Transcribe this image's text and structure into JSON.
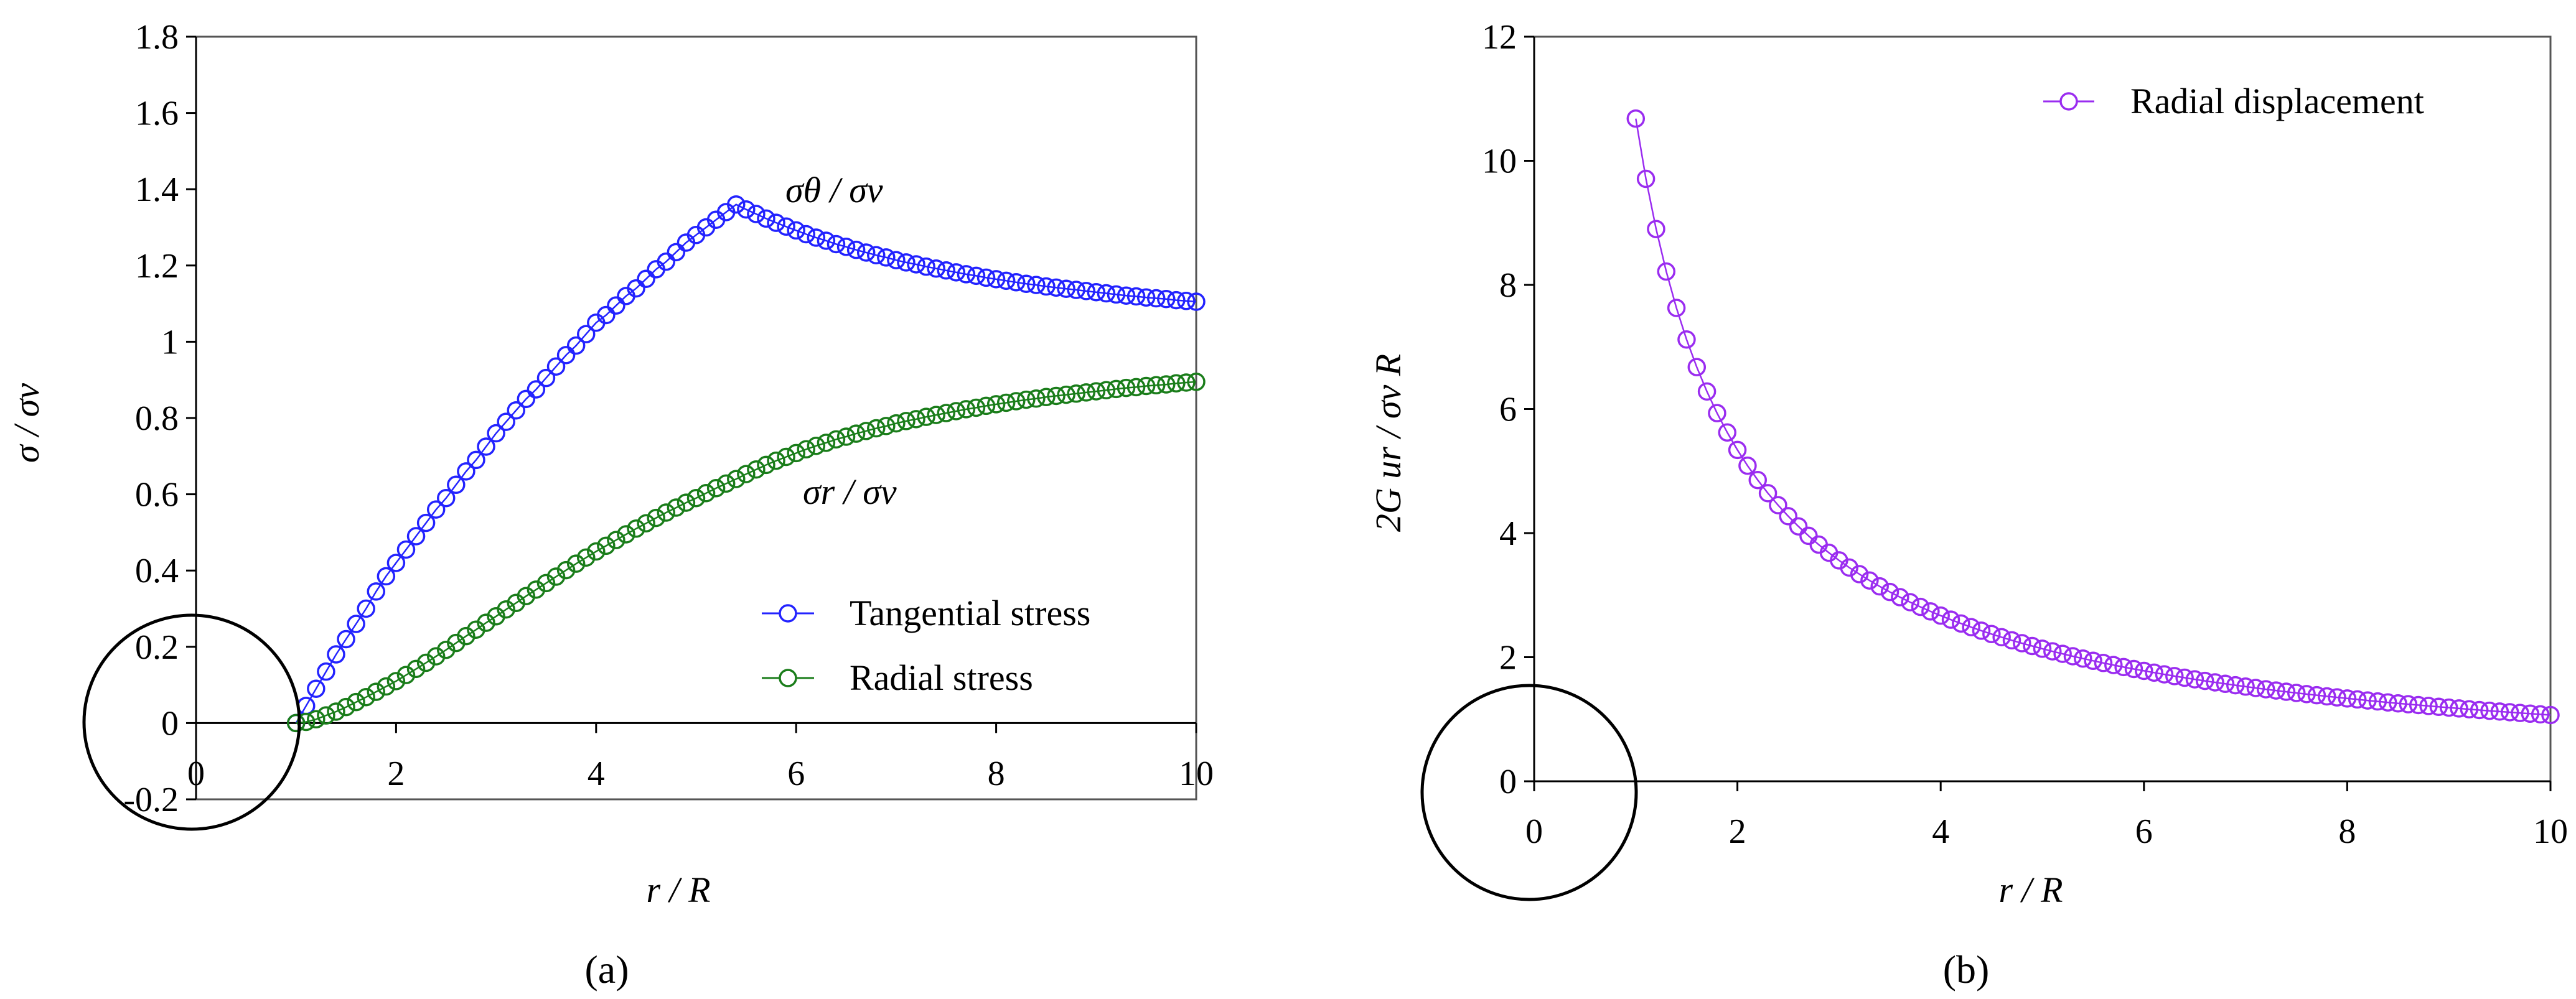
{
  "chart_data": [
    {
      "type": "line",
      "panel_label": "(a)",
      "panel_letter": "a",
      "xlabel": "r  /  R",
      "ylabel": "σ / σv",
      "xlim": [
        0,
        10
      ],
      "ylim": [
        -0.2,
        1.8
      ],
      "xticks": [
        "0",
        "2",
        "4",
        "6",
        "8",
        "10"
      ],
      "yticks": [
        "-0.2",
        "0",
        "0.2",
        "0.4",
        "0.6",
        "0.8",
        "1",
        "1.2",
        "1.4",
        "1.6",
        "1.8"
      ],
      "grid": false,
      "legend_placement": "bottom-right",
      "annotations": [
        {
          "text": "σθ / σv",
          "near": "Tangential stress"
        },
        {
          "text": "σr / σv",
          "near": "Radial stress"
        }
      ],
      "x": [
        1.0,
        1.1,
        1.2,
        1.3,
        1.4,
        1.5,
        1.6,
        1.7,
        1.8,
        1.9,
        2.0,
        2.1,
        2.2,
        2.3,
        2.4,
        2.5,
        2.6,
        2.7,
        2.8,
        2.9,
        3.0,
        3.1,
        3.2,
        3.3,
        3.4,
        3.5,
        3.6,
        3.7,
        3.8,
        3.9,
        4.0,
        4.1,
        4.2,
        4.3,
        4.4,
        4.5,
        4.6,
        4.7,
        4.8,
        4.9,
        5.0,
        5.1,
        5.2,
        5.3,
        5.4,
        5.5,
        5.6,
        5.7,
        5.8,
        5.9,
        6.0,
        6.1,
        6.2,
        6.3,
        6.4,
        6.5,
        6.6,
        6.7,
        6.8,
        6.9,
        7.0,
        7.1,
        7.2,
        7.3,
        7.4,
        7.5,
        7.6,
        7.7,
        7.8,
        7.9,
        8.0,
        8.1,
        8.2,
        8.3,
        8.4,
        8.5,
        8.6,
        8.7,
        8.8,
        8.9,
        9.0,
        9.1,
        9.2,
        9.3,
        9.4,
        9.5,
        9.6,
        9.7,
        9.8,
        9.9,
        10.0
      ],
      "series": [
        {
          "name": "Tangential stress",
          "color": "#2323ff",
          "values": [
            0.0,
            0.045,
            0.09,
            0.135,
            0.18,
            0.22,
            0.26,
            0.3,
            0.345,
            0.385,
            0.42,
            0.455,
            0.49,
            0.525,
            0.56,
            0.59,
            0.625,
            0.66,
            0.69,
            0.725,
            0.76,
            0.79,
            0.82,
            0.85,
            0.875,
            0.905,
            0.935,
            0.965,
            0.99,
            1.02,
            1.05,
            1.07,
            1.095,
            1.12,
            1.14,
            1.165,
            1.19,
            1.21,
            1.235,
            1.26,
            1.28,
            1.3,
            1.32,
            1.34,
            1.36,
            1.347,
            1.335,
            1.323,
            1.312,
            1.302,
            1.292,
            1.282,
            1.273,
            1.265,
            1.256,
            1.249,
            1.241,
            1.234,
            1.227,
            1.221,
            1.214,
            1.208,
            1.203,
            1.197,
            1.192,
            1.187,
            1.182,
            1.177,
            1.173,
            1.168,
            1.164,
            1.16,
            1.156,
            1.152,
            1.149,
            1.145,
            1.142,
            1.139,
            1.136,
            1.133,
            1.13,
            1.127,
            1.124,
            1.121,
            1.119,
            1.116,
            1.114,
            1.112,
            1.109,
            1.107,
            1.105
          ]
        },
        {
          "name": "Radial stress",
          "color": "#1a7d1a",
          "values": [
            0.0,
            0.003,
            0.01,
            0.02,
            0.03,
            0.042,
            0.055,
            0.068,
            0.082,
            0.096,
            0.11,
            0.126,
            0.142,
            0.158,
            0.175,
            0.192,
            0.21,
            0.228,
            0.245,
            0.263,
            0.28,
            0.298,
            0.315,
            0.333,
            0.35,
            0.367,
            0.384,
            0.401,
            0.418,
            0.434,
            0.45,
            0.465,
            0.48,
            0.495,
            0.51,
            0.524,
            0.538,
            0.552,
            0.565,
            0.578,
            0.59,
            0.603,
            0.616,
            0.628,
            0.64,
            0.653,
            0.665,
            0.677,
            0.688,
            0.698,
            0.708,
            0.718,
            0.727,
            0.735,
            0.744,
            0.751,
            0.759,
            0.766,
            0.773,
            0.779,
            0.786,
            0.792,
            0.797,
            0.803,
            0.808,
            0.813,
            0.818,
            0.823,
            0.827,
            0.832,
            0.836,
            0.84,
            0.844,
            0.848,
            0.851,
            0.855,
            0.858,
            0.861,
            0.864,
            0.867,
            0.87,
            0.873,
            0.876,
            0.879,
            0.881,
            0.884,
            0.886,
            0.888,
            0.891,
            0.893,
            0.895
          ]
        }
      ]
    },
    {
      "type": "line",
      "panel_label": "(b)",
      "panel_letter": "b",
      "xlabel": "r  /  R",
      "ylabel": "2G ur / σv R",
      "xlim": [
        0,
        10
      ],
      "ylim": [
        0,
        12
      ],
      "xticks": [
        "0",
        "2",
        "4",
        "6",
        "8",
        "10"
      ],
      "yticks": [
        "0",
        "2",
        "4",
        "6",
        "8",
        "10",
        "12"
      ],
      "grid": false,
      "legend_placement": "top-right",
      "x": [
        1.0,
        1.1,
        1.2,
        1.3,
        1.4,
        1.5,
        1.6,
        1.7,
        1.8,
        1.9,
        2.0,
        2.1,
        2.2,
        2.3,
        2.4,
        2.5,
        2.6,
        2.7,
        2.8,
        2.9,
        3.0,
        3.1,
        3.2,
        3.3,
        3.4,
        3.5,
        3.6,
        3.7,
        3.8,
        3.9,
        4.0,
        4.1,
        4.2,
        4.3,
        4.4,
        4.5,
        4.6,
        4.7,
        4.8,
        4.9,
        5.0,
        5.1,
        5.2,
        5.3,
        5.4,
        5.5,
        5.6,
        5.7,
        5.8,
        5.9,
        6.0,
        6.1,
        6.2,
        6.3,
        6.4,
        6.5,
        6.6,
        6.7,
        6.8,
        6.9,
        7.0,
        7.1,
        7.2,
        7.3,
        7.4,
        7.5,
        7.6,
        7.7,
        7.8,
        7.9,
        8.0,
        8.1,
        8.2,
        8.3,
        8.4,
        8.5,
        8.6,
        8.7,
        8.8,
        8.9,
        9.0,
        9.1,
        9.2,
        9.3,
        9.4,
        9.5,
        9.6,
        9.7,
        9.8,
        9.9,
        10.0
      ],
      "series": [
        {
          "name": "Radial displacement",
          "color": "#9a2cf0",
          "values": [
            10.68,
            9.709,
            8.9,
            8.215,
            7.629,
            7.12,
            6.675,
            6.282,
            5.933,
            5.621,
            5.34,
            5.086,
            4.855,
            4.643,
            4.45,
            4.272,
            4.108,
            3.956,
            3.814,
            3.683,
            3.56,
            3.445,
            3.338,
            3.236,
            3.141,
            3.051,
            2.967,
            2.886,
            2.811,
            2.738,
            2.67,
            2.605,
            2.543,
            2.484,
            2.427,
            2.373,
            2.322,
            2.272,
            2.225,
            2.18,
            2.136,
            2.094,
            2.054,
            2.015,
            1.978,
            1.942,
            1.907,
            1.874,
            1.841,
            1.81,
            1.78,
            1.751,
            1.723,
            1.695,
            1.669,
            1.643,
            1.618,
            1.594,
            1.571,
            1.548,
            1.526,
            1.504,
            1.483,
            1.463,
            1.443,
            1.424,
            1.405,
            1.387,
            1.369,
            1.352,
            1.335,
            1.319,
            1.302,
            1.287,
            1.271,
            1.256,
            1.242,
            1.228,
            1.214,
            1.2,
            1.187,
            1.174,
            1.161,
            1.148,
            1.136,
            1.124,
            1.113,
            1.101,
            1.09,
            1.079,
            1.068
          ]
        }
      ]
    }
  ]
}
